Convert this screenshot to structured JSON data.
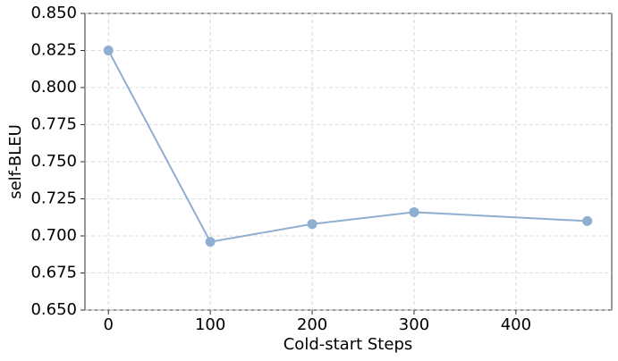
{
  "chart_data": {
    "type": "line",
    "x_label": "Cold-start Steps",
    "y_label": "self-BLEU",
    "series": [
      {
        "color": "#8eafcf",
        "x": [
          0,
          100,
          200,
          300,
          470
        ],
        "values": [
          0.825,
          0.696,
          0.708,
          0.716,
          0.71
        ]
      }
    ],
    "xlim": [
      -23,
      494
    ],
    "xticks": [
      0,
      100,
      200,
      300,
      400
    ],
    "ylim": [
      0.65,
      0.85
    ],
    "yticks": [
      {
        "value": 0.65,
        "label": "0.650"
      },
      {
        "value": 0.675,
        "label": "0.675"
      },
      {
        "value": 0.7,
        "label": "0.700"
      },
      {
        "value": 0.725,
        "label": "0.725"
      },
      {
        "value": 0.75,
        "label": "0.750"
      },
      {
        "value": 0.775,
        "label": "0.775"
      },
      {
        "value": 0.8,
        "label": "0.800"
      },
      {
        "value": 0.825,
        "label": "0.825"
      },
      {
        "value": 0.85,
        "label": "0.850"
      }
    ],
    "grid": true
  }
}
